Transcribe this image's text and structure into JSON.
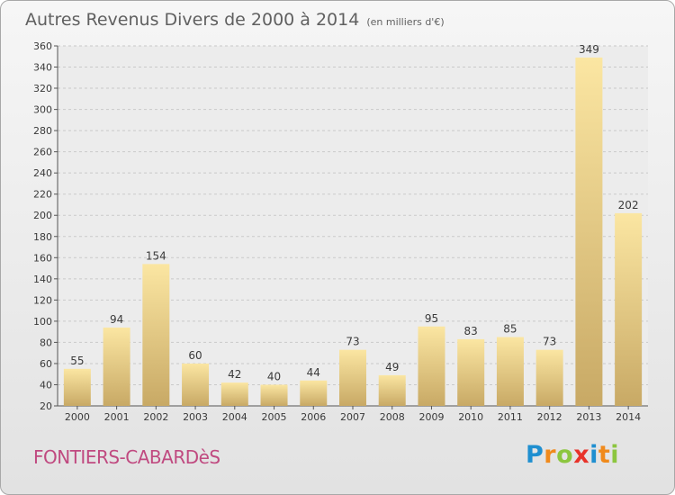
{
  "title": "Autres Revenus Divers de 2000 à 2014",
  "subtitle": "(en milliers d'€)",
  "location": "FONTIERS-CABARDèS",
  "logo": {
    "text": "Proxiti",
    "letters": [
      {
        "char": "P",
        "color": "#1f8fd0"
      },
      {
        "char": "r",
        "color": "#f08a1c"
      },
      {
        "char": "o",
        "color": "#8cc63f"
      },
      {
        "char": "x",
        "color": "#e8332a"
      },
      {
        "char": "i",
        "color": "#1f8fd0"
      },
      {
        "char": "t",
        "color": "#f08a1c"
      },
      {
        "char": "i",
        "color": "#8cc63f"
      }
    ]
  },
  "chart_data": {
    "type": "bar",
    "categories": [
      "2000",
      "2001",
      "2002",
      "2003",
      "2004",
      "2005",
      "2006",
      "2007",
      "2008",
      "2009",
      "2010",
      "2011",
      "2012",
      "2013",
      "2014"
    ],
    "values": [
      55,
      94,
      154,
      60,
      42,
      40,
      44,
      73,
      49,
      95,
      83,
      85,
      73,
      349,
      202
    ],
    "ylim": [
      20,
      360
    ],
    "yticks": [
      20,
      40,
      60,
      80,
      100,
      120,
      140,
      160,
      180,
      200,
      220,
      240,
      260,
      280,
      300,
      320,
      340,
      360
    ],
    "grid": true,
    "bar_color_light": "#fbe6a2",
    "bar_color_dark": "#c8a965"
  }
}
